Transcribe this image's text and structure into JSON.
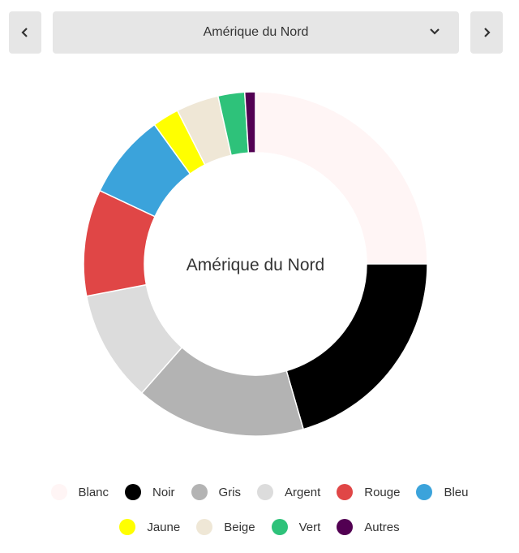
{
  "selector": {
    "value": "Amérique du Nord",
    "prev_icon": "chevron-left-icon",
    "next_icon": "chevron-right-icon",
    "dropdown_icon": "chevron-down-icon"
  },
  "chart_data": {
    "type": "pie",
    "variant": "donut",
    "center_label": "Amérique du Nord",
    "legend_position": "bottom",
    "categories": [
      "Blanc",
      "Noir",
      "Gris",
      "Argent",
      "Rouge",
      "Bleu",
      "Jaune",
      "Beige",
      "Vert",
      "Autres"
    ],
    "values": [
      25,
      20.5,
      16,
      10.5,
      10,
      8,
      2.5,
      4,
      2.5,
      1
    ],
    "unit": "%",
    "colors": [
      "#fff5f5",
      "#000000",
      "#b3b3b3",
      "#dcdcdc",
      "#e04646",
      "#3ba3db",
      "#ffff00",
      "#efe7d6",
      "#2ec27a",
      "#520052"
    ]
  }
}
